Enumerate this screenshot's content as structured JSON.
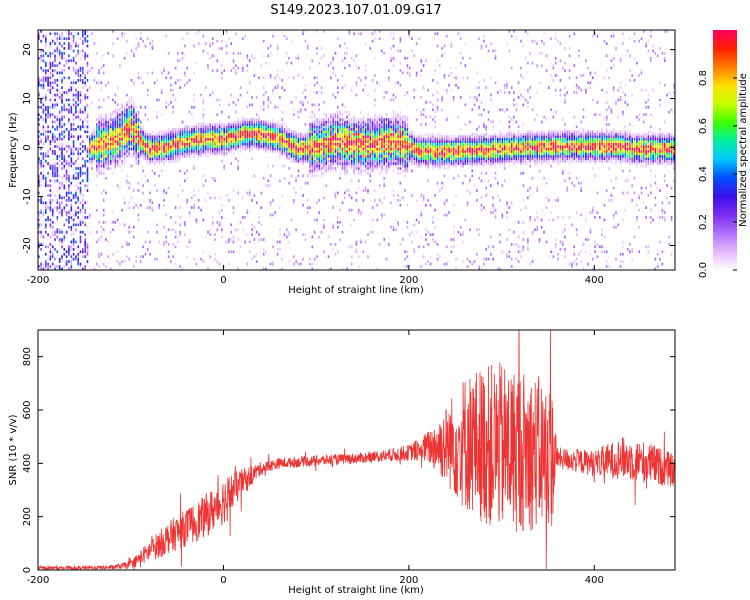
{
  "figure": {
    "title": "S149.2023.107.01.09.G17"
  },
  "chart_data": [
    {
      "type": "heatmap",
      "xlabel": "Height of straight line (km)",
      "ylabel": "Frequency (Hz)",
      "xlim": [
        -200,
        487
      ],
      "ylim": [
        -25,
        24
      ],
      "xticks": [
        -200,
        0,
        200,
        400
      ],
      "yticks": [
        -20,
        -10,
        0,
        10,
        20
      ],
      "grid": false,
      "colorbar": {
        "label": "Normalized spectral amplitude",
        "range": [
          0.0,
          1.0
        ],
        "ticks": [
          0.0,
          0.2,
          0.4,
          0.6,
          0.8
        ],
        "tick_labels": [
          "0.0",
          "0.2",
          "0.4",
          "0.6",
          "0.8"
        ],
        "colormap": [
          "#ffffff",
          "#e5b8ff",
          "#b070ff",
          "#7a2cf0",
          "#3a10e8",
          "#0050ff",
          "#00c8ff",
          "#00f0a0",
          "#3cff00",
          "#c8ff00",
          "#ffe000",
          "#ff7a00",
          "#ff2000",
          "#ff0060"
        ]
      },
      "ridge_frequency": {
        "x": [
          -150,
          -140,
          -120,
          -100,
          -90,
          -80,
          -60,
          -40,
          -20,
          0,
          20,
          40,
          60,
          80,
          100,
          120,
          140,
          160,
          180,
          200,
          210,
          250,
          300,
          350,
          400,
          430,
          440,
          487
        ],
        "y": [
          -1,
          0,
          1,
          4,
          1,
          -0.5,
          0,
          1,
          1.5,
          1.5,
          2.5,
          2.5,
          1.5,
          -0.5,
          0,
          1,
          0.5,
          0.5,
          1,
          0,
          -1,
          -1,
          -0.5,
          0,
          0,
          0,
          -0.5,
          -0.5
        ]
      }
    },
    {
      "type": "line",
      "xlabel": "Height of straight line (km)",
      "ylabel": "SNR (10 * v/v)",
      "xlim": [
        -200,
        487
      ],
      "ylim": [
        0,
        900
      ],
      "xticks": [
        -200,
        0,
        200,
        400
      ],
      "yticks": [
        0,
        200,
        400,
        600,
        800
      ],
      "grid": false,
      "series_color": "#ee3333",
      "envelope": {
        "x": [
          -200,
          -150,
          -120,
          -100,
          -80,
          -60,
          -40,
          -20,
          0,
          20,
          40,
          60,
          100,
          150,
          180,
          200,
          220,
          240,
          260,
          280,
          300,
          320,
          340,
          355,
          360,
          400,
          430,
          460,
          487
        ],
        "mean": [
          8,
          8,
          10,
          20,
          70,
          120,
          160,
          200,
          260,
          330,
          380,
          400,
          410,
          420,
          430,
          440,
          460,
          470,
          480,
          470,
          460,
          450,
          440,
          420,
          420,
          400,
          420,
          400,
          370
        ],
        "spread": [
          6,
          6,
          8,
          15,
          40,
          60,
          70,
          80,
          90,
          50,
          25,
          20,
          20,
          20,
          25,
          30,
          60,
          150,
          260,
          300,
          320,
          310,
          290,
          270,
          40,
          50,
          80,
          80,
          60
        ]
      }
    }
  ]
}
